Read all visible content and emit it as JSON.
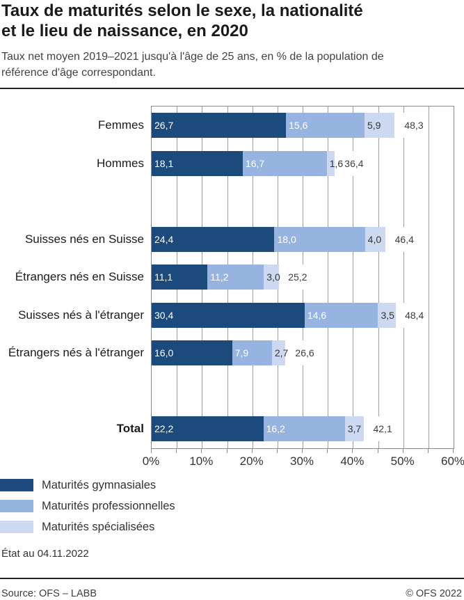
{
  "header": {
    "title_line1": "Taux de maturités selon le sexe, la nationalité",
    "title_line2": "et le lieu de naissance, en 2020",
    "subtitle_line1": "Taux net moyen 2019–2021 jusqu'à l'âge de 25 ans, en % de la population de",
    "subtitle_line2": "référence d'âge correspondant."
  },
  "chart_data": {
    "type": "bar",
    "orientation": "horizontal",
    "stacked": true,
    "unit": "%",
    "xlim": [
      0,
      60
    ],
    "x_tick_step": 10,
    "minor_tick_step": 5,
    "gridline_step": 5,
    "x_tick_labels": [
      "0%",
      "10%",
      "20%",
      "30%",
      "40%",
      "50%",
      "60%"
    ],
    "categories": [
      "Femmes",
      "Hommes",
      "Suisses nés en Suisse",
      "Étrangers nés en Suisse",
      "Suisses nés à l'étranger",
      "Étrangers nés à l'étranger",
      "Total"
    ],
    "groups": [
      [
        0,
        1
      ],
      [
        2,
        3,
        4,
        5
      ],
      [
        6
      ]
    ],
    "bold_categories": [
      "Total"
    ],
    "series": [
      {
        "name": "Maturités gymnasiales",
        "color": "#1c4a7c",
        "label_color": "#ffffff",
        "values": [
          26.7,
          18.1,
          24.4,
          11.1,
          30.4,
          16.0,
          22.2
        ]
      },
      {
        "name": "Maturités professionnelles",
        "color": "#97b4e1",
        "label_color": "#ffffff",
        "values": [
          15.6,
          16.7,
          18.0,
          11.2,
          14.6,
          7.9,
          16.2
        ]
      },
      {
        "name": "Maturités spécialisées",
        "color": "#ccd9f1",
        "label_color": "#333333",
        "values": [
          5.9,
          1.6,
          4.0,
          3.0,
          3.5,
          2.7,
          3.7
        ]
      }
    ],
    "totals": [
      48.3,
      36.4,
      46.4,
      25.2,
      48.4,
      26.6,
      42.1
    ],
    "decimal_separator": ",",
    "grid_color": "#9c9c9c",
    "frame_color": "#8a8a8a",
    "legend_position": "bottom-left"
  },
  "status_note": "État au 04.11.2022",
  "footer": {
    "source": "Source: OFS – LABB",
    "copyright": "© OFS 2022"
  }
}
